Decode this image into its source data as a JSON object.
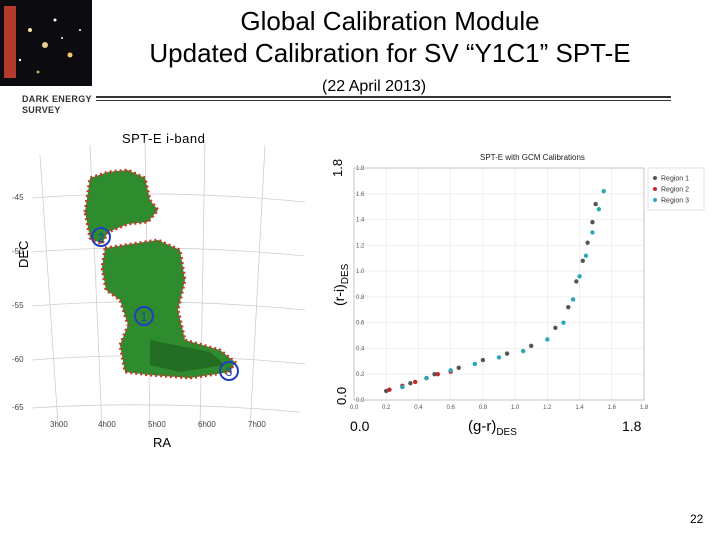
{
  "header": {
    "title_line1": "Global Calibration Module",
    "title_line2": "Updated Calibration for SV “Y1C1” SPT-E",
    "date": "(22 April 2013)",
    "logo_text_line1": "DARK ENERGY",
    "logo_text_line2": "SURVEY"
  },
  "map": {
    "caption": "SPT-E i-band",
    "ylabel": "DEC",
    "xlabel": "RA",
    "dec_ticks": [
      "-45",
      "-50",
      "-55",
      "-60",
      "-65"
    ],
    "ra_ticks": [
      "3h00",
      "4h00",
      "5h00",
      "6h00",
      "7h00"
    ],
    "region_markers": [
      "1",
      "2",
      "3"
    ],
    "colors": {
      "footprint": "#2e8b2e",
      "edge": "#c0392b",
      "marker": "#1f3fbf"
    }
  },
  "chart_data": {
    "type": "scatter",
    "title": "SPT-E with GCM Calibrations",
    "xlabel_main": "(g-r)",
    "xlabel_sub": "DES",
    "ylabel_main": "(r-i)",
    "ylabel_sub": "DES",
    "x_axis_label_left": "0.0",
    "x_axis_label_right": "1.8",
    "y_axis_label_bottom": "0.0",
    "y_axis_label_top": "1.8",
    "xlim": [
      0,
      1.8
    ],
    "ylim": [
      0,
      1.8
    ],
    "xticks": [
      "0.0",
      "0.2",
      "0.4",
      "0.6",
      "0.8",
      "1.0",
      "1.2",
      "1.4",
      "1.6",
      "1.8"
    ],
    "yticks": [
      "0.0",
      "0.2",
      "0.4",
      "0.6",
      "0.8",
      "1.0",
      "1.2",
      "1.4",
      "1.6",
      "1.8"
    ],
    "legend_position": "top-right",
    "series": [
      {
        "name": "Region 1",
        "color": "#555555",
        "x": [
          0.2,
          0.35,
          0.5,
          0.65,
          0.8,
          0.95,
          1.1,
          1.25,
          1.33,
          1.38,
          1.42,
          1.45,
          1.48,
          1.5
        ],
        "y": [
          0.07,
          0.13,
          0.2,
          0.25,
          0.31,
          0.36,
          0.42,
          0.56,
          0.72,
          0.92,
          1.08,
          1.22,
          1.38,
          1.52
        ]
      },
      {
        "name": "Region 2",
        "color": "#c1272d",
        "x": [
          0.22,
          0.3,
          0.38,
          0.45,
          0.52,
          0.6
        ],
        "y": [
          0.08,
          0.11,
          0.14,
          0.17,
          0.2,
          0.22
        ]
      },
      {
        "name": "Region 3",
        "color": "#2aa7b8",
        "x": [
          0.3,
          0.45,
          0.6,
          0.75,
          0.9,
          1.05,
          1.2,
          1.3,
          1.36,
          1.4,
          1.44,
          1.48,
          1.52,
          1.55
        ],
        "y": [
          0.1,
          0.17,
          0.23,
          0.28,
          0.33,
          0.38,
          0.47,
          0.6,
          0.78,
          0.96,
          1.12,
          1.3,
          1.48,
          1.62
        ]
      }
    ]
  },
  "footer": {
    "page_number": "22"
  }
}
